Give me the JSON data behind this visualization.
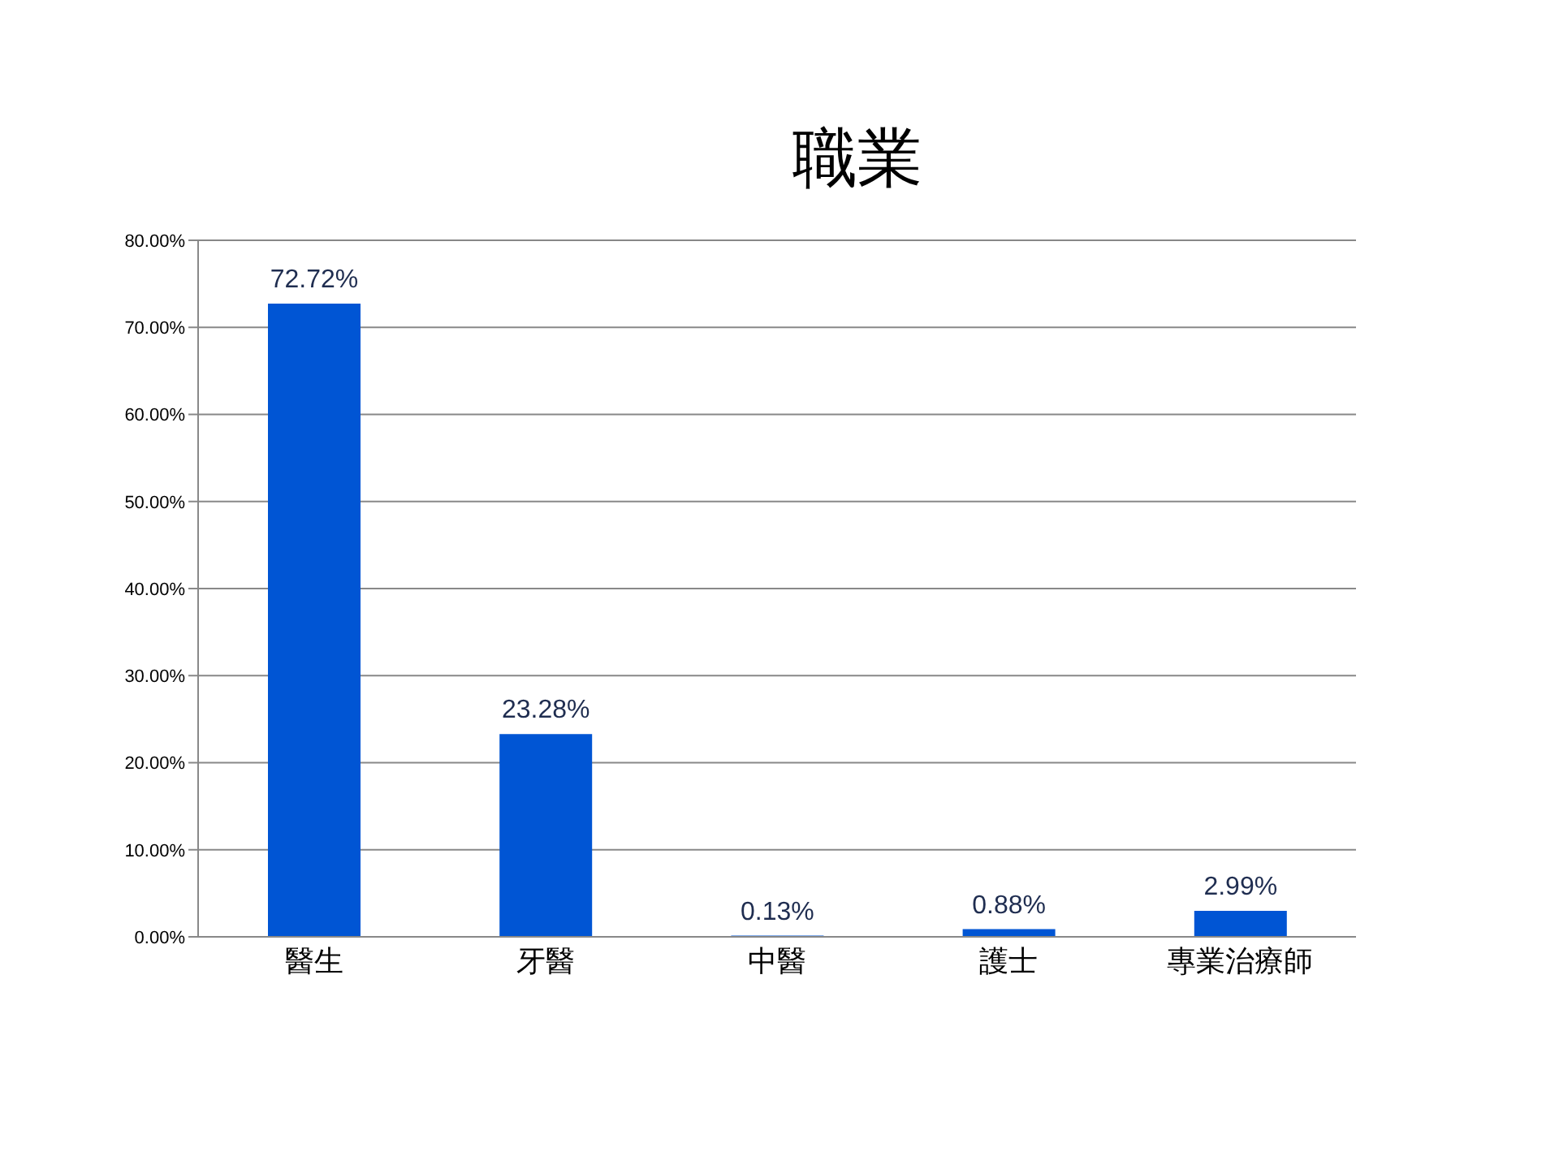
{
  "chart_data": {
    "type": "bar",
    "title": "職業",
    "categories": [
      "醫生",
      "牙醫",
      "中醫",
      "護士",
      "專業治療師"
    ],
    "values": [
      72.72,
      23.28,
      0.13,
      0.88,
      2.99
    ],
    "value_labels": [
      "72.72%",
      "23.28%",
      "0.13%",
      "0.88%",
      "2.99%"
    ],
    "color": "#0055d4",
    "ylim": [
      0,
      80
    ],
    "yticks": [
      {
        "value": 0,
        "label": "0.00%"
      },
      {
        "value": 10,
        "label": "10.00%"
      },
      {
        "value": 20,
        "label": "20.00%"
      },
      {
        "value": 30,
        "label": "30.00%"
      },
      {
        "value": 40,
        "label": "40.00%"
      },
      {
        "value": 50,
        "label": "50.00%"
      },
      {
        "value": 60,
        "label": "60.00%"
      },
      {
        "value": 70,
        "label": "70.00%"
      },
      {
        "value": 80,
        "label": "80.00%"
      }
    ],
    "grid": "y"
  }
}
